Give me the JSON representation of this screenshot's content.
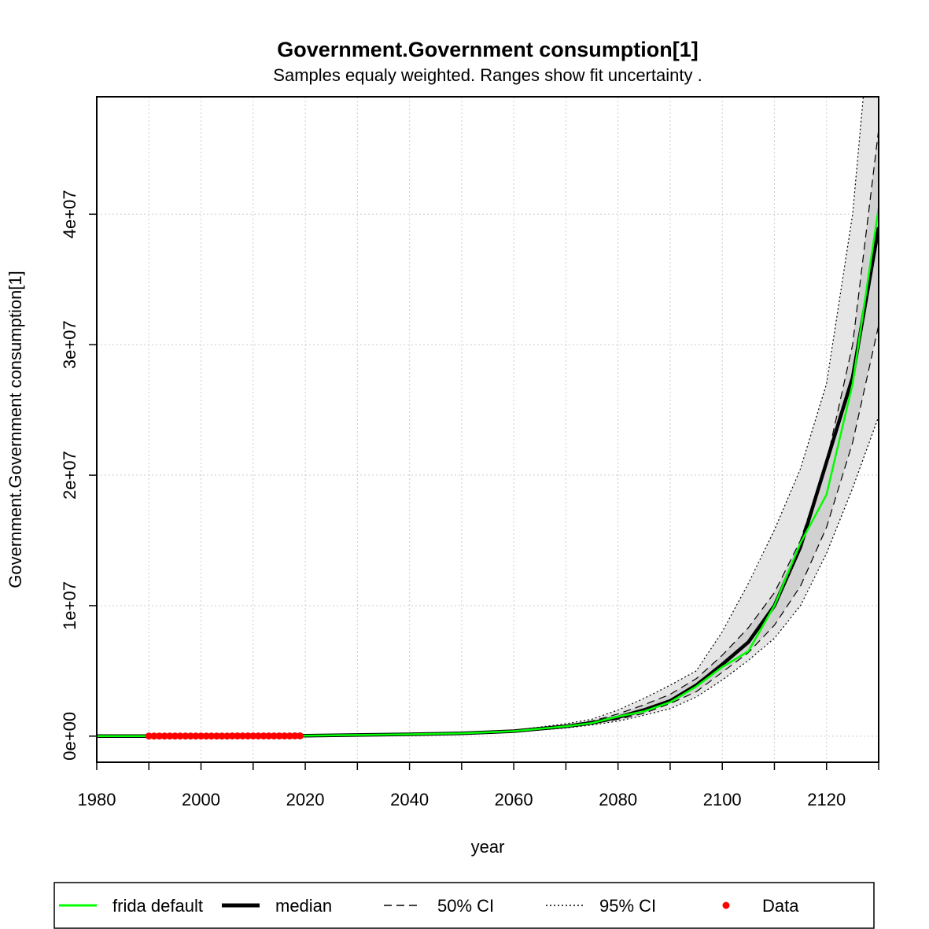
{
  "chart_data": {
    "type": "line",
    "title": "Government.Government consumption[1]",
    "subtitle": "Samples equaly weighted. Ranges show  fit uncertainty .",
    "xlabel": "year",
    "ylabel": "Government.Government consumption[1]",
    "xlim": [
      1980,
      2130
    ],
    "ylim": [
      -2000000,
      49000000
    ],
    "x_ticks": [
      1980,
      2000,
      2020,
      2040,
      2060,
      2080,
      2100,
      2120
    ],
    "x_tick_labels": [
      "1980",
      "2000",
      "2020",
      "2040",
      "2060",
      "2080",
      "2100",
      "2120"
    ],
    "y_ticks": [
      0,
      10000000,
      20000000,
      30000000,
      40000000
    ],
    "y_tick_labels": [
      "0e+00",
      "1e+07",
      "2e+07",
      "3e+07",
      "4e+07"
    ],
    "grid": true,
    "legend_position": "bottom",
    "x": [
      1980,
      2000,
      2020,
      2040,
      2050,
      2060,
      2070,
      2075,
      2080,
      2085,
      2090,
      2095,
      2100,
      2105,
      2110,
      2115,
      2120,
      2125,
      2130
    ],
    "bands": {
      "ci95_upper": [
        0,
        10000,
        40000,
        160000,
        250000,
        450000,
        950000,
        1300000,
        2000000,
        2900000,
        3900000,
        5000000,
        8000000,
        11700000,
        15800000,
        20500000,
        27000000,
        40000000,
        62000000
      ],
      "ci95_lower": [
        0,
        10000,
        30000,
        120000,
        190000,
        320000,
        620000,
        850000,
        1150000,
        1600000,
        2100000,
        3000000,
        4300000,
        5800000,
        7500000,
        10000000,
        14000000,
        19000000,
        24500000
      ],
      "ci50_upper": [
        0,
        10000,
        38000,
        150000,
        230000,
        410000,
        820000,
        1150000,
        1700000,
        2400000,
        3200000,
        4400000,
        6200000,
        8300000,
        11000000,
        15000000,
        21000000,
        30000000,
        46500000
      ],
      "ci50_lower": [
        0,
        10000,
        32000,
        130000,
        200000,
        350000,
        700000,
        950000,
        1300000,
        1750000,
        2500000,
        3400000,
        4900000,
        6400000,
        8500000,
        11500000,
        16000000,
        22500000,
        31500000
      ]
    },
    "series": [
      {
        "name": "frida default",
        "color": "#00ff00",
        "style": "solid",
        "values": [
          0,
          10000,
          35000,
          140000,
          210000,
          380000,
          750000,
          1000000,
          1500000,
          1900000,
          2600000,
          3800000,
          5300000,
          6500000,
          10000000,
          14800000,
          18500000,
          27000000,
          40500000
        ]
      },
      {
        "name": "median",
        "color": "#000000",
        "style": "solid",
        "values": [
          0,
          10000,
          35000,
          140000,
          210000,
          380000,
          750000,
          1020000,
          1450000,
          2000000,
          2700000,
          3900000,
          5500000,
          7200000,
          10000000,
          14500000,
          21000000,
          27500000,
          39000000
        ]
      }
    ],
    "data_points": {
      "name": "Data",
      "color": "#ff0000",
      "x": [
        1990,
        1991,
        1992,
        1993,
        1994,
        1995,
        1996,
        1997,
        1998,
        1999,
        2000,
        2001,
        2002,
        2003,
        2004,
        2005,
        2006,
        2007,
        2008,
        2009,
        2010,
        2011,
        2012,
        2013,
        2014,
        2015,
        2016,
        2017,
        2018,
        2019
      ],
      "y": [
        5000,
        5300,
        5600,
        5900,
        6200,
        6500,
        6800,
        7100,
        7400,
        7700,
        8000,
        8400,
        8800,
        9200,
        9600,
        10000,
        10500,
        11000,
        11500,
        12000,
        12500,
        13000,
        13500,
        14000,
        14500,
        15000,
        15500,
        16000,
        16500,
        17000
      ]
    },
    "legend": [
      "frida default",
      "median",
      "50% CI",
      "95% CI",
      "Data"
    ],
    "colors": {
      "band95": "#e6e6e6",
      "band50": "#d1d1d1",
      "grid": "#cccccc"
    }
  }
}
